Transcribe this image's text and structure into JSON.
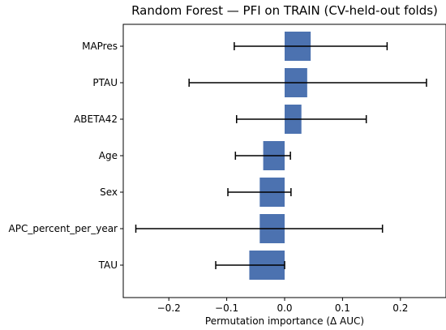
{
  "chart_data": {
    "type": "bar",
    "orientation": "horizontal",
    "title": "Random Forest — PFI on TRAIN (CV-held-out folds)",
    "xlabel": "Permutation importance (Δ AUC)",
    "ylabel": "",
    "xlim": [
      -0.28,
      0.27
    ],
    "xticks": [
      -0.2,
      -0.1,
      0.0,
      0.1,
      0.2
    ],
    "xtick_labels": [
      "−0.2",
      "−0.1",
      "0.0",
      "0.1",
      "0.2"
    ],
    "grid": false,
    "bar_color": "#4c72b0",
    "categories": [
      "MAPres",
      "PTAU",
      "ABETA42",
      "Age",
      "Sex",
      "APC_percent_per_year",
      "TAU"
    ],
    "values": [
      0.045,
      0.039,
      0.029,
      -0.037,
      -0.043,
      -0.043,
      -0.061
    ],
    "error_low": [
      -0.087,
      -0.165,
      -0.083,
      -0.085,
      -0.098,
      -0.257,
      -0.119
    ],
    "error_high": [
      0.177,
      0.245,
      0.141,
      0.01,
      0.011,
      0.169,
      0.0
    ]
  }
}
